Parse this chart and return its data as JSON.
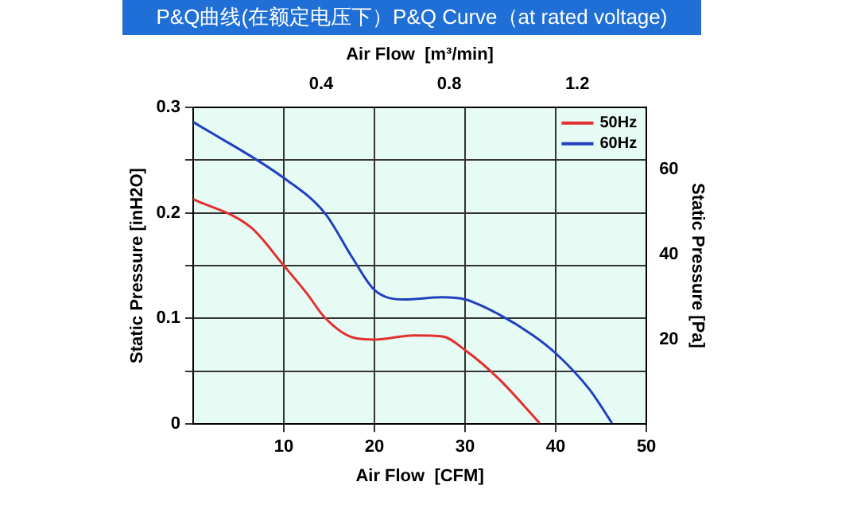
{
  "chart_data": {
    "type": "line",
    "title": "P&Q曲线(在额定电压下）P&Q Curve（at rated voltage)",
    "xlabel": "Air Flow  [CFM]",
    "ylabel": "Static Pressure [inH2O]",
    "y2label": "Static Pressure [Pa]",
    "x2label": "Air Flow  [m³/min]",
    "xlim": [
      0,
      50
    ],
    "xticks": [
      10,
      20,
      30,
      40,
      50
    ],
    "ylim": [
      0,
      0.3
    ],
    "yticks": [
      0,
      {
        "value": 0.05,
        "label": null
      },
      0.1,
      {
        "value": 0.15,
        "label": null
      },
      0.2,
      {
        "value": 0.25,
        "label": null
      },
      0.3
    ],
    "x2lim": [
      0,
      1.416
    ],
    "x2ticks": [
      0.4,
      0.8,
      1.2
    ],
    "y2lim": [
      0,
      74.7
    ],
    "y2ticks": [
      20,
      40,
      60
    ],
    "grid": true,
    "legend": "top right",
    "series": [
      {
        "name": "50Hz",
        "color": "#e03030",
        "x": [
          0,
          6.4,
          10,
          12.6,
          14.5,
          17.6,
          20,
          24.4,
          27.5,
          30,
          33.7,
          38.2
        ],
        "values": [
          0.213,
          0.186,
          0.15,
          0.123,
          0.101,
          0.082,
          0.08,
          0.084,
          0.083,
          0.07,
          0.043,
          0.001
        ]
      },
      {
        "name": "60Hz",
        "color": "#2040c0",
        "x": [
          0,
          10,
          14.5,
          17.6,
          20,
          23.2,
          27.5,
          30,
          33.7,
          37.5,
          40,
          43.7,
          46.2
        ],
        "values": [
          0.286,
          0.233,
          0.2,
          0.157,
          0.127,
          0.118,
          0.12,
          0.118,
          0.104,
          0.084,
          0.067,
          0.033,
          0.001
        ]
      }
    ]
  }
}
